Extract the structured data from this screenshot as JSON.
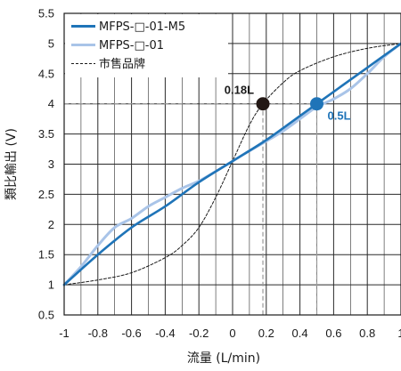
{
  "chart_data": {
    "type": "line",
    "xlabel": "流量 (L/min)",
    "ylabel": "類比輸出 (V)",
    "xlim": [
      -1,
      1
    ],
    "ylim": [
      0.5,
      5.5
    ],
    "x_ticks": [
      "-1",
      "-0.8",
      "-0.6",
      "-0.4",
      "-0.2",
      "0",
      "0.2",
      "0.4",
      "0.6",
      "0.8",
      "1"
    ],
    "y_ticks": [
      "0.5",
      "1",
      "1.5",
      "2",
      "2.5",
      "3",
      "3.5",
      "4",
      "4.5",
      "5",
      "5.5"
    ],
    "grid": true,
    "legend_position": "top-left",
    "series": [
      {
        "name": "MFPS-□-01-M5",
        "style": "solid",
        "color": "#1f74b8",
        "x": [
          -1,
          -0.8,
          -0.6,
          -0.4,
          -0.2,
          0,
          0.2,
          0.4,
          0.6,
          0.8,
          1
        ],
        "y": [
          1.0,
          1.5,
          1.95,
          2.3,
          2.7,
          3.05,
          3.4,
          3.8,
          4.2,
          4.6,
          5.0
        ]
      },
      {
        "name": "MFPS-□-01",
        "style": "solid",
        "color": "#a9c4e8",
        "x": [
          -1,
          -0.9,
          -0.8,
          -0.7,
          -0.6,
          -0.5,
          -0.4,
          -0.3,
          -0.2,
          -0.1,
          0,
          0.1,
          0.2,
          0.3,
          0.4,
          0.5,
          0.6,
          0.7,
          0.8,
          0.9,
          1
        ],
        "y": [
          1.0,
          1.3,
          1.65,
          1.95,
          2.1,
          2.3,
          2.45,
          2.6,
          2.72,
          2.88,
          3.05,
          3.22,
          3.38,
          3.55,
          3.75,
          3.95,
          4.08,
          4.25,
          4.5,
          4.78,
          5.0
        ]
      },
      {
        "name": "市售品牌",
        "style": "dashed",
        "color": "#1a1a1a",
        "x": [
          -1,
          -0.8,
          -0.6,
          -0.4,
          -0.3,
          -0.2,
          -0.1,
          0,
          0.1,
          0.18,
          0.3,
          0.4,
          0.6,
          0.8,
          1
        ],
        "y": [
          1.0,
          1.08,
          1.2,
          1.45,
          1.65,
          1.95,
          2.45,
          3.05,
          3.65,
          4.0,
          4.35,
          4.55,
          4.78,
          4.92,
          5.0
        ]
      }
    ],
    "annotations": [
      {
        "label": "0.18L",
        "x": 0.18,
        "y": 4.0,
        "color": "#1a1a1a"
      },
      {
        "label": "0.5L",
        "x": 0.5,
        "y": 4.0,
        "color": "#1f74b8"
      }
    ]
  }
}
